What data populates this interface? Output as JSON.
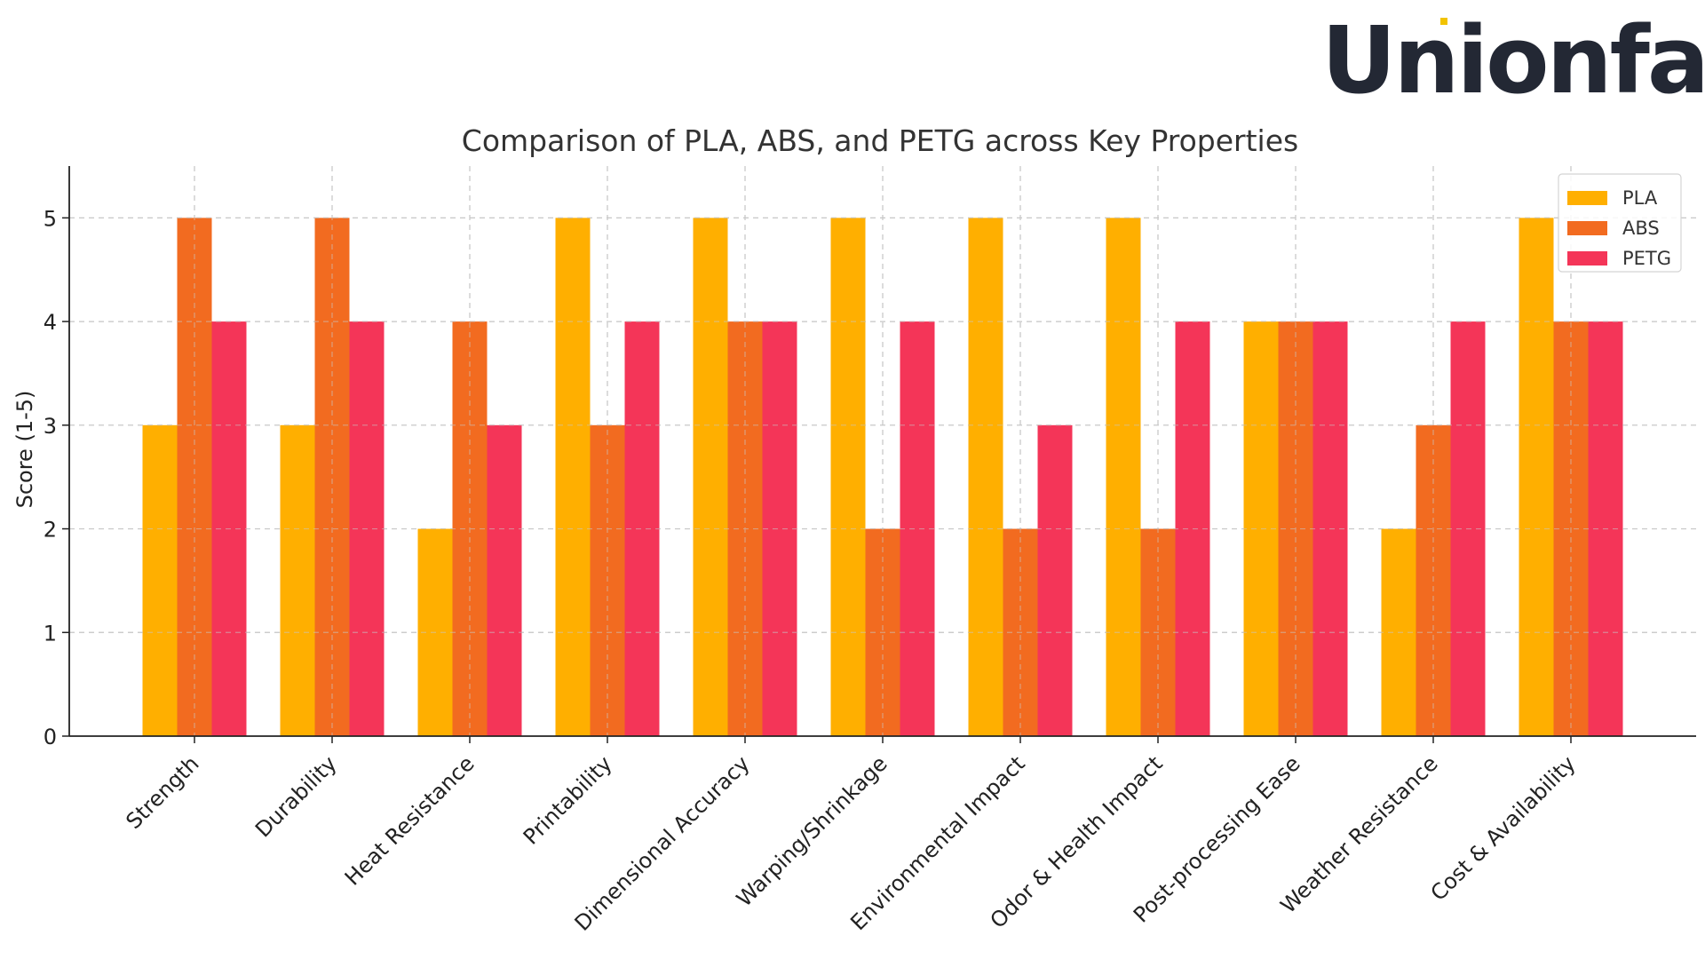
{
  "brand": {
    "logo_text": "Unionfab",
    "logo_color": "#232834",
    "accent_color": "#f2c300"
  },
  "chart_data": {
    "type": "bar",
    "title": "Comparison of PLA, ABS, and PETG across Key Properties",
    "xlabel": "",
    "ylabel": "Score (1-5)",
    "ylim": [
      0,
      5.5
    ],
    "yticks": [
      0,
      1,
      2,
      3,
      4,
      5
    ],
    "grid": true,
    "legend_position": "top-right",
    "categories": [
      "Strength",
      "Durability",
      "Heat Resistance",
      "Printability",
      "Dimensional Accuracy",
      "Warping/Shrinkage",
      "Environmental Impact",
      "Odor & Health Impact",
      "Post-processing Ease",
      "Weather Resistance",
      "Cost & Availability"
    ],
    "series": [
      {
        "name": "PLA",
        "color": "#ffaf00",
        "values": [
          3,
          3,
          2,
          5,
          5,
          5,
          5,
          5,
          4,
          2,
          5
        ]
      },
      {
        "name": "ABS",
        "color": "#f26b20",
        "values": [
          5,
          5,
          4,
          3,
          4,
          2,
          2,
          2,
          4,
          3,
          4
        ]
      },
      {
        "name": "PETG",
        "color": "#f43558",
        "values": [
          4,
          4,
          3,
          4,
          4,
          4,
          3,
          4,
          4,
          4,
          4
        ]
      }
    ]
  }
}
